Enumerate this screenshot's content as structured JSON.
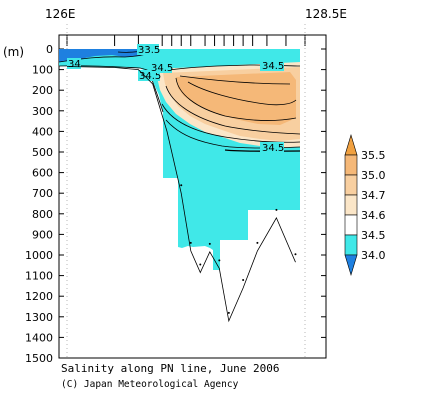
{
  "chart_data": {
    "type": "heatmap",
    "title": "Salinity along PN line, June 2006",
    "credit": "(C) Japan Meteorological Agency",
    "y_unit_label": "(m)",
    "x_ticks": [
      {
        "lon": 126.0,
        "label": "126E"
      },
      {
        "lon": 128.5,
        "label": "128.5E"
      }
    ],
    "x_range": [
      126.0,
      128.5
    ],
    "y_range": [
      0,
      1500
    ],
    "y_reverse": true,
    "y_ticks": [
      0,
      100,
      200,
      300,
      400,
      500,
      600,
      700,
      800,
      900,
      1000,
      1100,
      1200,
      1300,
      1400,
      1500
    ],
    "stations_lon": [
      126.0,
      126.5,
      126.75,
      127.0,
      127.1,
      127.2,
      127.3,
      127.45,
      127.55,
      127.65,
      127.75,
      127.85,
      127.95,
      128.1,
      128.3,
      128.5
    ],
    "levels": [
      34.0,
      34.5,
      34.6,
      34.7,
      35.0,
      35.5
    ],
    "colorbar": {
      "labels": [
        "35.5",
        "35.0",
        "34.7",
        "34.6",
        "34.5",
        "34.0"
      ],
      "colors": {
        "above_35_5": "#f0a040",
        "35_0_to_35_5": "#f5b878",
        "34_7_to_35_0": "#f8cfa0",
        "34_6_to_34_7": "#fbe6c8",
        "34_5_to_34_6": "#ffffff",
        "34_0_to_34_5": "#40e8e8",
        "below_34_0": "#1e80e0"
      }
    },
    "contour_labels": [
      "33.5",
      "34",
      "34.5",
      "34.5",
      "34.5",
      "34.5"
    ],
    "bottom_profile": [
      {
        "lon": 126.0,
        "depth": 85
      },
      {
        "lon": 126.5,
        "depth": 90
      },
      {
        "lon": 126.75,
        "depth": 100
      },
      {
        "lon": 126.9,
        "depth": 170
      },
      {
        "lon": 127.05,
        "depth": 400
      },
      {
        "lon": 127.2,
        "depth": 700
      },
      {
        "lon": 127.3,
        "depth": 980
      },
      {
        "lon": 127.4,
        "depth": 1085
      },
      {
        "lon": 127.5,
        "depth": 985
      },
      {
        "lon": 127.6,
        "depth": 1065
      },
      {
        "lon": 127.7,
        "depth": 1320
      },
      {
        "lon": 127.85,
        "depth": 1160
      },
      {
        "lon": 128.0,
        "depth": 980
      },
      {
        "lon": 128.2,
        "depth": 820
      },
      {
        "lon": 128.4,
        "depth": 1035
      }
    ]
  }
}
